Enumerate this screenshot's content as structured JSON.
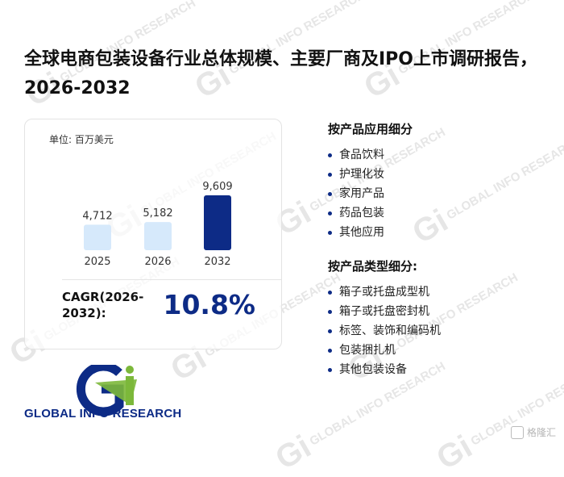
{
  "title": "全球电商包装设备行业总体规模、主要厂商及IPO上市调研报告，2026-2032",
  "chart_data": {
    "type": "bar",
    "unit_label": "单位: 百万美元",
    "categories": [
      "2025",
      "2026",
      "2032"
    ],
    "values": [
      4712,
      5182,
      9609
    ],
    "value_labels": [
      "4,712",
      "5,182",
      "9,609"
    ],
    "bar_colors": [
      "#d6e9fb",
      "#d6e9fb",
      "#0d2b86"
    ],
    "ylim": [
      0,
      10000
    ]
  },
  "cagr": {
    "label": "CAGR(2026-2032):",
    "value": "10.8%"
  },
  "application_section": {
    "heading": "按产品应用细分",
    "items": [
      "食品饮料",
      "护理化妆",
      "家用产品",
      "药品包装",
      "其他应用"
    ]
  },
  "type_section": {
    "heading": "按产品类型细分:",
    "items": [
      "箱子或托盘成型机",
      "箱子或托盘密封机",
      "标签、装饰和编码机",
      "包装捆扎机",
      "其他包装设备"
    ]
  },
  "logo": {
    "text": "GLOBAL INFO RESEARCH",
    "colors": {
      "g": "#0d2b86",
      "i": "#7cb83a"
    }
  },
  "watermark": {
    "text": "GLOBAL INFO RESEARCH"
  },
  "corner_mark": {
    "text": "格隆汇"
  }
}
